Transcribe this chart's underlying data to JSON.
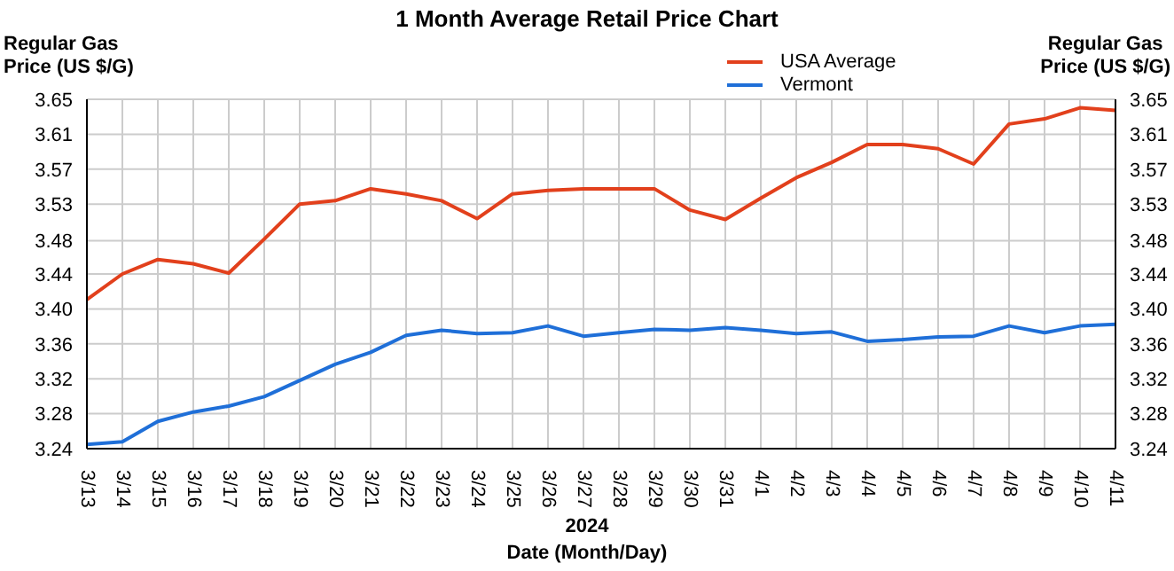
{
  "chart_data": {
    "type": "line",
    "title": "1 Month Average Retail Price Chart",
    "ylabel": "Regular Gas Price (US $/G)",
    "y2label": "Regular Gas Price (US $/G)",
    "xlabel": "Date (Month/Day)",
    "annotations": [
      "2024"
    ],
    "categories": [
      "3/13",
      "3/14",
      "3/15",
      "3/16",
      "3/17",
      "3/18",
      "3/19",
      "3/20",
      "3/21",
      "3/22",
      "3/23",
      "3/24",
      "3/25",
      "3/26",
      "3/27",
      "3/28",
      "3/29",
      "3/30",
      "3/31",
      "4/1",
      "4/2",
      "4/3",
      "4/4",
      "4/5",
      "4/6",
      "4/7",
      "4/8",
      "4/9",
      "4/10",
      "4/11"
    ],
    "series": [
      {
        "name": "USA Average",
        "color": "#e2401c",
        "values": [
          3.415,
          3.445,
          3.462,
          3.457,
          3.446,
          3.486,
          3.527,
          3.531,
          3.545,
          3.539,
          3.531,
          3.51,
          3.539,
          3.543,
          3.545,
          3.545,
          3.545,
          3.52,
          3.509,
          3.534,
          3.558,
          3.576,
          3.597,
          3.597,
          3.592,
          3.574,
          3.621,
          3.627,
          3.64,
          3.637
        ]
      },
      {
        "name": "Vermont",
        "color": "#1f6fd8",
        "values": [
          3.245,
          3.248,
          3.272,
          3.283,
          3.29,
          3.301,
          3.32,
          3.339,
          3.353,
          3.373,
          3.379,
          3.375,
          3.376,
          3.384,
          3.372,
          3.376,
          3.38,
          3.379,
          3.382,
          3.379,
          3.375,
          3.377,
          3.366,
          3.368,
          3.371,
          3.372,
          3.384,
          3.376,
          3.384,
          3.386
        ]
      }
    ],
    "ylim": [
      3.24,
      3.65
    ],
    "yticks": [
      {
        "value": 3.24,
        "label": "3.24"
      },
      {
        "value": 3.281,
        "label": "3.28"
      },
      {
        "value": 3.322,
        "label": "3.32"
      },
      {
        "value": 3.363,
        "label": "3.36"
      },
      {
        "value": 3.404,
        "label": "3.40"
      },
      {
        "value": 3.445,
        "label": "3.44"
      },
      {
        "value": 3.484,
        "label": "3.48"
      },
      {
        "value": 3.527,
        "label": "3.53"
      },
      {
        "value": 3.568,
        "label": "3.57"
      },
      {
        "value": 3.609,
        "label": "3.61"
      },
      {
        "value": 3.65,
        "label": "3.65"
      }
    ],
    "y2lim": [
      3.24,
      3.65
    ],
    "y2ticks": [
      {
        "value": 3.24,
        "label": "3.24"
      },
      {
        "value": 3.281,
        "label": "3.28"
      },
      {
        "value": 3.322,
        "label": "3.32"
      },
      {
        "value": 3.363,
        "label": "3.36"
      },
      {
        "value": 3.404,
        "label": "3.40"
      },
      {
        "value": 3.445,
        "label": "3.44"
      },
      {
        "value": 3.484,
        "label": "3.48"
      },
      {
        "value": 3.527,
        "label": "3.53"
      },
      {
        "value": 3.568,
        "label": "3.57"
      },
      {
        "value": 3.609,
        "label": "3.61"
      },
      {
        "value": 3.65,
        "label": "3.65"
      }
    ],
    "grid": true,
    "legend": "top",
    "marker": "none",
    "line_style": "solid"
  }
}
